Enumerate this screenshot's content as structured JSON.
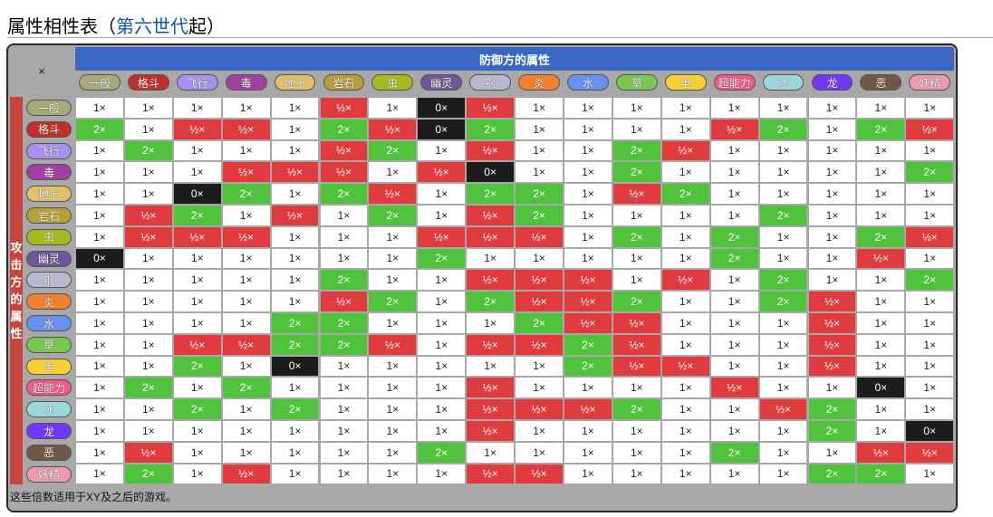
{
  "page": {
    "title_prefix": "属性相性表（",
    "title_link": "第六世代",
    "title_suffix": "起）"
  },
  "table": {
    "corner_label": "×",
    "defender_header": "防御方的属性",
    "attacker_header": [
      "攻",
      "击",
      "方",
      "的",
      "属",
      "性"
    ],
    "footer_note": "这些倍数适用于XY及之后的游戏。",
    "types": [
      {
        "name": "一般",
        "color": "#a8a878"
      },
      {
        "name": "格斗",
        "color": "#c03028"
      },
      {
        "name": "飞行",
        "color": "#a890f0"
      },
      {
        "name": "毒",
        "color": "#a040a0"
      },
      {
        "name": "地上",
        "color": "#e0c068"
      },
      {
        "name": "岩石",
        "color": "#b8a038"
      },
      {
        "name": "虫",
        "color": "#a8b820"
      },
      {
        "name": "幽灵",
        "color": "#705898"
      },
      {
        "name": "钢",
        "color": "#b8b8d0"
      },
      {
        "name": "炎",
        "color": "#f08030"
      },
      {
        "name": "水",
        "color": "#6890f0"
      },
      {
        "name": "草",
        "color": "#78c850"
      },
      {
        "name": "电",
        "color": "#f8d030"
      },
      {
        "name": "超能力",
        "color": "#f85888"
      },
      {
        "name": "冰",
        "color": "#98d8d8"
      },
      {
        "name": "龙",
        "color": "#7038f8"
      },
      {
        "name": "恶",
        "color": "#705848"
      },
      {
        "name": "妖精",
        "color": "#ee99ac"
      }
    ],
    "labels": {
      "n": "1×",
      "s": "2×",
      "h": "½×",
      "z": "0×"
    },
    "matrix": [
      [
        "n",
        "n",
        "n",
        "n",
        "n",
        "h",
        "n",
        "z",
        "h",
        "n",
        "n",
        "n",
        "n",
        "n",
        "n",
        "n",
        "n",
        "n"
      ],
      [
        "s",
        "n",
        "h",
        "h",
        "n",
        "s",
        "h",
        "z",
        "s",
        "n",
        "n",
        "n",
        "n",
        "h",
        "s",
        "n",
        "s",
        "h"
      ],
      [
        "n",
        "s",
        "n",
        "n",
        "n",
        "h",
        "s",
        "n",
        "h",
        "n",
        "n",
        "s",
        "h",
        "n",
        "n",
        "n",
        "n",
        "n"
      ],
      [
        "n",
        "n",
        "n",
        "h",
        "h",
        "h",
        "n",
        "h",
        "z",
        "n",
        "n",
        "s",
        "n",
        "n",
        "n",
        "n",
        "n",
        "s"
      ],
      [
        "n",
        "n",
        "z",
        "s",
        "n",
        "s",
        "h",
        "n",
        "s",
        "s",
        "n",
        "h",
        "s",
        "n",
        "n",
        "n",
        "n",
        "n"
      ],
      [
        "n",
        "h",
        "s",
        "n",
        "h",
        "n",
        "s",
        "n",
        "h",
        "s",
        "n",
        "n",
        "n",
        "n",
        "s",
        "n",
        "n",
        "n"
      ],
      [
        "n",
        "h",
        "h",
        "h",
        "n",
        "n",
        "n",
        "h",
        "h",
        "h",
        "n",
        "s",
        "n",
        "s",
        "n",
        "n",
        "s",
        "h"
      ],
      [
        "z",
        "n",
        "n",
        "n",
        "n",
        "n",
        "n",
        "s",
        "n",
        "n",
        "n",
        "n",
        "n",
        "s",
        "n",
        "n",
        "h",
        "n"
      ],
      [
        "n",
        "n",
        "n",
        "n",
        "n",
        "s",
        "n",
        "n",
        "h",
        "h",
        "h",
        "n",
        "h",
        "n",
        "s",
        "n",
        "n",
        "s"
      ],
      [
        "n",
        "n",
        "n",
        "n",
        "n",
        "h",
        "s",
        "n",
        "s",
        "h",
        "h",
        "s",
        "n",
        "n",
        "s",
        "h",
        "n",
        "n"
      ],
      [
        "n",
        "n",
        "n",
        "n",
        "s",
        "s",
        "n",
        "n",
        "n",
        "s",
        "h",
        "h",
        "n",
        "n",
        "n",
        "h",
        "n",
        "n"
      ],
      [
        "n",
        "n",
        "h",
        "h",
        "s",
        "s",
        "h",
        "n",
        "h",
        "h",
        "s",
        "h",
        "n",
        "n",
        "n",
        "h",
        "n",
        "n"
      ],
      [
        "n",
        "n",
        "s",
        "n",
        "z",
        "n",
        "n",
        "n",
        "n",
        "n",
        "s",
        "h",
        "h",
        "n",
        "n",
        "h",
        "n",
        "n"
      ],
      [
        "n",
        "s",
        "n",
        "s",
        "n",
        "n",
        "n",
        "n",
        "h",
        "n",
        "n",
        "n",
        "n",
        "h",
        "n",
        "n",
        "z",
        "n"
      ],
      [
        "n",
        "n",
        "s",
        "n",
        "s",
        "n",
        "n",
        "n",
        "h",
        "h",
        "h",
        "s",
        "n",
        "n",
        "h",
        "s",
        "n",
        "n"
      ],
      [
        "n",
        "n",
        "n",
        "n",
        "n",
        "n",
        "n",
        "n",
        "h",
        "n",
        "n",
        "n",
        "n",
        "n",
        "n",
        "s",
        "n",
        "z"
      ],
      [
        "n",
        "h",
        "n",
        "n",
        "n",
        "n",
        "n",
        "s",
        "n",
        "n",
        "n",
        "n",
        "n",
        "s",
        "n",
        "n",
        "h",
        "h"
      ],
      [
        "n",
        "s",
        "n",
        "h",
        "n",
        "n",
        "n",
        "n",
        "h",
        "h",
        "n",
        "n",
        "n",
        "n",
        "n",
        "s",
        "s",
        "n"
      ]
    ]
  }
}
